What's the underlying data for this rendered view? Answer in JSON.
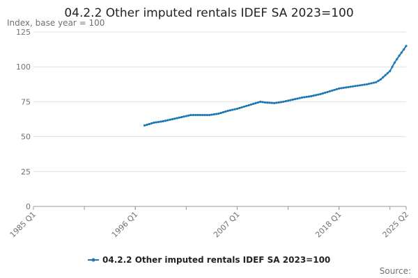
{
  "chart_data": {
    "type": "line",
    "title": "04.2.2 Other imputed rentals IDEF SA 2023=100",
    "ylabel": "Index, base year = 100",
    "xlabel": "",
    "x_tick_labels": [
      "1985 Q1",
      "1996 Q1",
      "2007 Q1",
      "2018 Q1",
      "2025 Q2"
    ],
    "x_range": [
      "1985 Q1",
      "2025 Q2"
    ],
    "ylim": [
      0,
      125
    ],
    "y_ticks": [
      0,
      25,
      50,
      75,
      100,
      125
    ],
    "grid": "horizontal",
    "legend_position": "bottom",
    "source_label": "Source:",
    "series": [
      {
        "name": "04.2.2 Other imputed rentals IDEF SA 2023=100",
        "color": "#1f77b4",
        "points": [
          {
            "x": "1997 Q1",
            "y": 58.0
          },
          {
            "x": "1998 Q1",
            "y": 60.0
          },
          {
            "x": "1999 Q1",
            "y": 61.0
          },
          {
            "x": "2000 Q1",
            "y": 62.5
          },
          {
            "x": "2001 Q1",
            "y": 64.0
          },
          {
            "x": "2002 Q1",
            "y": 65.5
          },
          {
            "x": "2003 Q1",
            "y": 65.5
          },
          {
            "x": "2004 Q1",
            "y": 65.5
          },
          {
            "x": "2005 Q1",
            "y": 66.5
          },
          {
            "x": "2006 Q1",
            "y": 68.5
          },
          {
            "x": "2007 Q1",
            "y": 70.0
          },
          {
            "x": "2008 Q1",
            "y": 72.0
          },
          {
            "x": "2009 Q1",
            "y": 74.0
          },
          {
            "x": "2009 Q3",
            "y": 75.0
          },
          {
            "x": "2010 Q1",
            "y": 74.5
          },
          {
            "x": "2011 Q1",
            "y": 74.0
          },
          {
            "x": "2012 Q1",
            "y": 75.0
          },
          {
            "x": "2013 Q1",
            "y": 76.5
          },
          {
            "x": "2014 Q1",
            "y": 78.0
          },
          {
            "x": "2015 Q1",
            "y": 79.0
          },
          {
            "x": "2016 Q1",
            "y": 80.5
          },
          {
            "x": "2017 Q1",
            "y": 82.5
          },
          {
            "x": "2018 Q1",
            "y": 84.5
          },
          {
            "x": "2019 Q1",
            "y": 85.5
          },
          {
            "x": "2020 Q1",
            "y": 86.5
          },
          {
            "x": "2021 Q1",
            "y": 87.5
          },
          {
            "x": "2022 Q1",
            "y": 89.0
          },
          {
            "x": "2022 Q3",
            "y": 91.0
          },
          {
            "x": "2023 Q1",
            "y": 94.0
          },
          {
            "x": "2023 Q3",
            "y": 97.0
          },
          {
            "x": "2024 Q1",
            "y": 103.0
          },
          {
            "x": "2024 Q3",
            "y": 108.0
          },
          {
            "x": "2025 Q1",
            "y": 112.5
          },
          {
            "x": "2025 Q2",
            "y": 115.0
          }
        ]
      }
    ]
  }
}
